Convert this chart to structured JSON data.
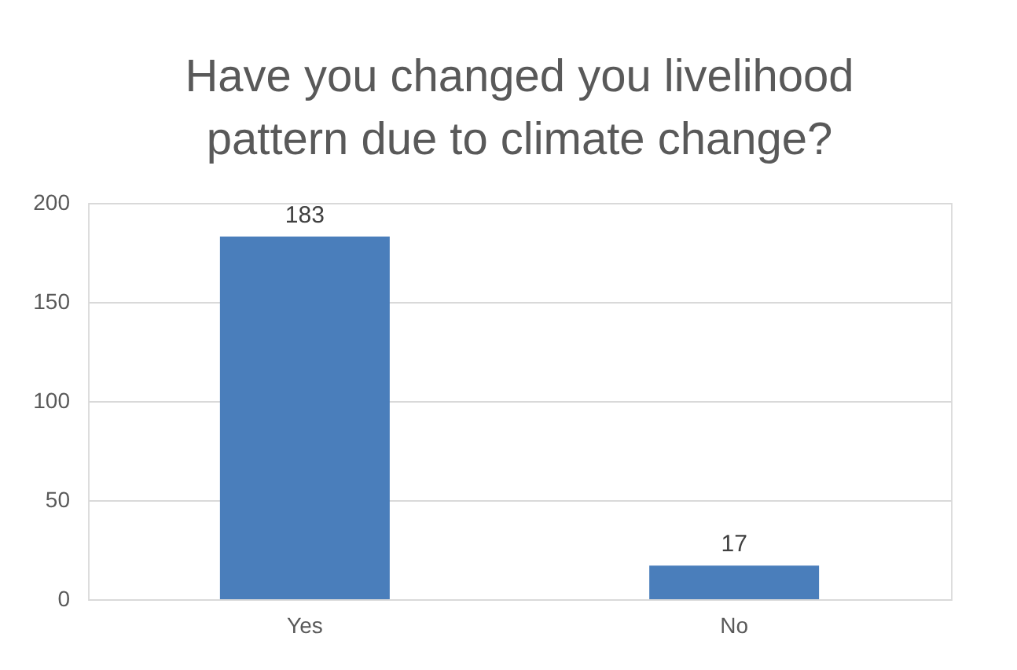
{
  "chart_data": {
    "type": "bar",
    "title": "Have you changed you livelihood pattern due to climate change?",
    "categories": [
      "Yes",
      "No"
    ],
    "values": [
      183,
      17
    ],
    "color": "#4a7ebb",
    "ylim": [
      0,
      200
    ],
    "yticks": [
      0,
      50,
      100,
      150,
      200
    ],
    "grid": "y",
    "data_labels": true
  }
}
